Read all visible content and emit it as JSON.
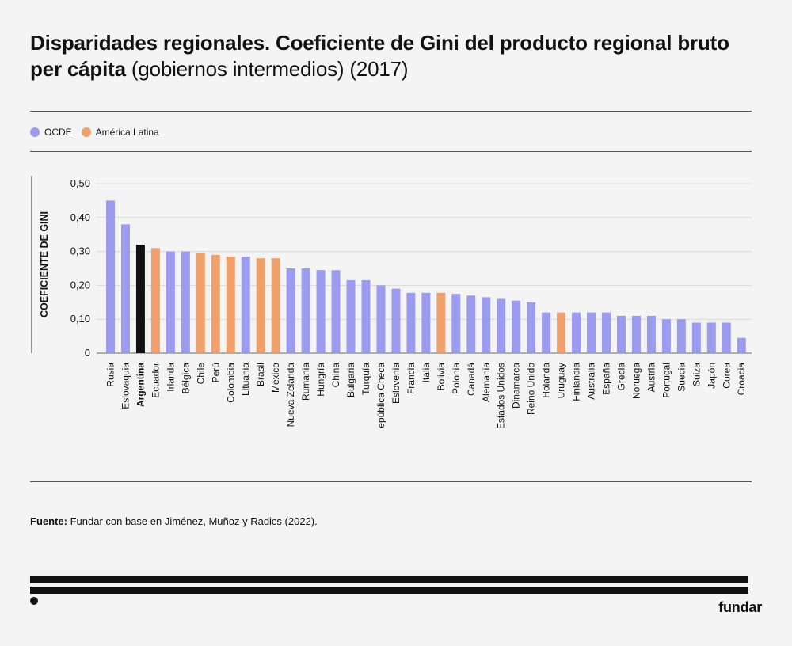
{
  "header": {
    "title_bold": "Disparidades regionales. Coeficiente de Gini del producto regional bruto per cápita",
    "title_regular": "(gobiernos intermedios) (2017)"
  },
  "legend": [
    {
      "label": "OCDE",
      "color": "#9b9bef"
    },
    {
      "label": "América Latina",
      "color": "#f0a06a"
    }
  ],
  "colors": {
    "ocde": "#9b9bef",
    "latam": "#f0a06a",
    "highlight": "#111111"
  },
  "chart_data": {
    "type": "bar",
    "ylabel": "COEFICIENTE DE GINI",
    "ylim": [
      0,
      0.5
    ],
    "yticks": [
      0,
      0.1,
      0.2,
      0.3,
      0.4,
      0.5
    ],
    "ytick_labels": [
      "0",
      "0,10",
      "0,20",
      "0,30",
      "0,40",
      "0,50"
    ],
    "grid": true,
    "categories": [
      "Rusia",
      "Eslovaquia",
      "Argentina",
      "Ecuador",
      "Irlanda",
      "Bélgica",
      "Chile",
      "Perú",
      "Colombia",
      "Lituania",
      "Brasil",
      "México",
      "Nueva Zelanda",
      "Rumania",
      "Hungría",
      "China",
      "Bulgaria",
      "Turquía",
      "República Checa",
      "Eslovenia",
      "Francia",
      "Italia",
      "Bolivia",
      "Polonia",
      "Canadá",
      "Alemania",
      "Estados Unidos",
      "Dinamarca",
      "Reino Unido",
      "Holanda",
      "Uruguay",
      "Finlandia",
      "Australia",
      "España",
      "Grecia",
      "Noruega",
      "Austria",
      "Portugal",
      "Suecia",
      "Suiza",
      "Japón",
      "Corea",
      "Croacia"
    ],
    "values": [
      0.45,
      0.38,
      0.32,
      0.31,
      0.3,
      0.3,
      0.295,
      0.29,
      0.285,
      0.285,
      0.28,
      0.28,
      0.25,
      0.25,
      0.245,
      0.245,
      0.215,
      0.215,
      0.2,
      0.19,
      0.178,
      0.178,
      0.178,
      0.175,
      0.17,
      0.165,
      0.16,
      0.155,
      0.15,
      0.12,
      0.12,
      0.12,
      0.12,
      0.12,
      0.11,
      0.11,
      0.11,
      0.1,
      0.1,
      0.09,
      0.09,
      0.09,
      0.045
    ],
    "groups": [
      "ocde",
      "ocde",
      "highlight",
      "latam",
      "ocde",
      "ocde",
      "latam",
      "latam",
      "latam",
      "ocde",
      "latam",
      "latam",
      "ocde",
      "ocde",
      "ocde",
      "ocde",
      "ocde",
      "ocde",
      "ocde",
      "ocde",
      "ocde",
      "ocde",
      "latam",
      "ocde",
      "ocde",
      "ocde",
      "ocde",
      "ocde",
      "ocde",
      "ocde",
      "latam",
      "ocde",
      "ocde",
      "ocde",
      "ocde",
      "ocde",
      "ocde",
      "ocde",
      "ocde",
      "ocde",
      "ocde",
      "ocde",
      "ocde"
    ],
    "bold_category": "Argentina"
  },
  "source": {
    "label": "Fuente:",
    "text": "Fundar con base en Jiménez, Muñoz y Radics (2022)."
  },
  "brand": "fundar"
}
